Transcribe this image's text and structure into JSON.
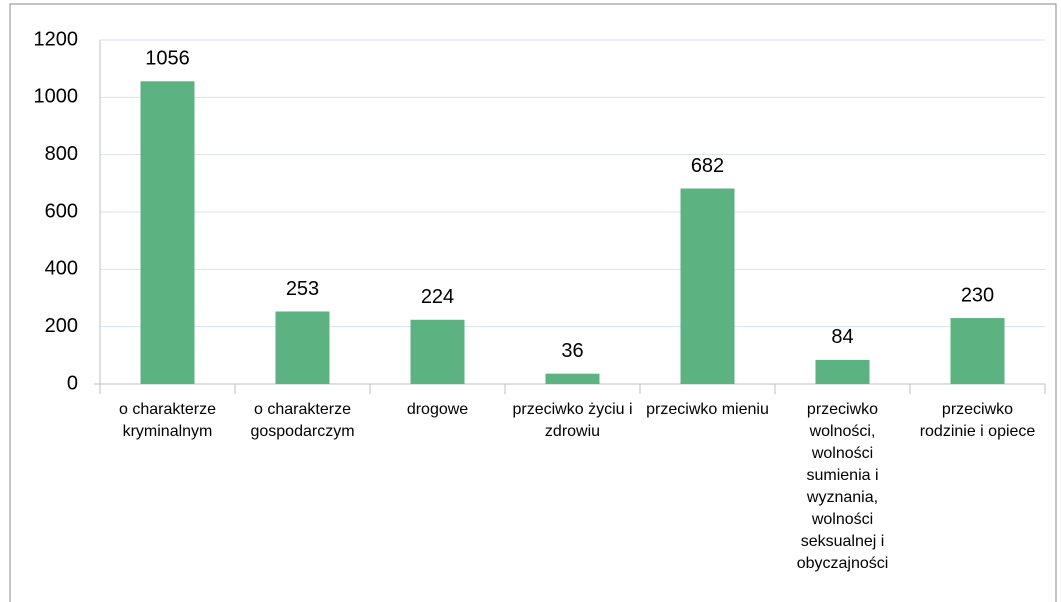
{
  "chart_data": {
    "type": "bar",
    "categories": [
      "o charakterze kryminalnym",
      "o charakterze gospodarczym",
      "drogowe",
      "przeciwko życiu i zdrowiu",
      "przeciwko mieniu",
      "przeciwko wolności, wolności sumienia i wyznania, wolności seksualnej i obyczajności",
      "przeciwko rodzinie i opiece"
    ],
    "values": [
      1056,
      253,
      224,
      36,
      682,
      84,
      230
    ],
    "color": "#5cb281",
    "ylim": [
      0,
      1200
    ],
    "yticks": [
      0,
      200,
      400,
      600,
      800,
      1000,
      1200
    ],
    "grid": true
  }
}
